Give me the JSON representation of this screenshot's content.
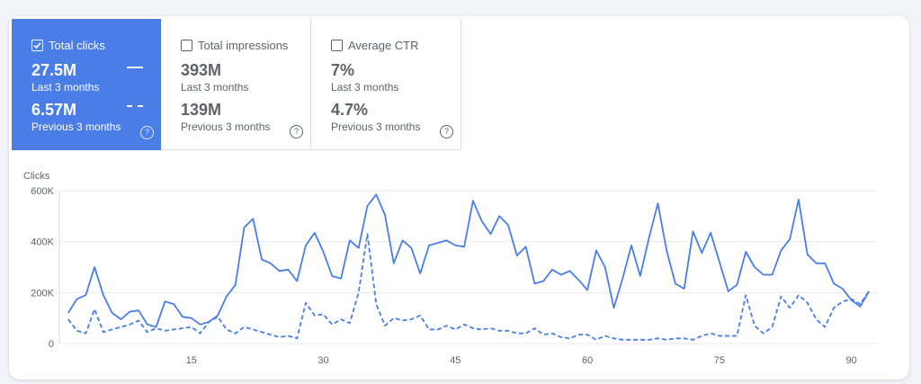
{
  "metrics": [
    {
      "label": "Total clicks",
      "checked": true,
      "value": "27.5M",
      "period": "Last 3 months",
      "prev_value": "6.57M",
      "prev_period": "Previous 3 months",
      "help": "?"
    },
    {
      "label": "Total impressions",
      "checked": false,
      "value": "393M",
      "period": "Last 3 months",
      "prev_value": "139M",
      "prev_period": "Previous 3 months",
      "help": "?"
    },
    {
      "label": "Average CTR",
      "checked": false,
      "value": "7%",
      "period": "Last 3 months",
      "prev_value": "4.7%",
      "prev_period": "Previous 3 months",
      "help": "?"
    }
  ],
  "colors": {
    "accent": "#4a7ee6",
    "line": "#4a7ee6",
    "grid": "#e8eaed",
    "axis": "#5f6368"
  },
  "chart_data": {
    "type": "line",
    "ylabel": "Clicks",
    "xlabel": "",
    "y_tick_labels": [
      "0",
      "200K",
      "400K",
      "600K"
    ],
    "y_ticks": [
      0,
      200000,
      400000,
      600000
    ],
    "x_tick_labels": [
      "15",
      "30",
      "45",
      "60",
      "75",
      "90"
    ],
    "x_ticks": [
      15,
      30,
      45,
      60,
      75,
      90
    ],
    "xlim": [
      0,
      93
    ],
    "ylim": [
      0,
      600000
    ],
    "x": [
      1,
      2,
      3,
      4,
      5,
      6,
      7,
      8,
      9,
      10,
      11,
      12,
      13,
      14,
      15,
      16,
      17,
      18,
      19,
      20,
      21,
      22,
      23,
      24,
      25,
      26,
      27,
      28,
      29,
      30,
      31,
      32,
      33,
      34,
      35,
      36,
      37,
      38,
      39,
      40,
      41,
      42,
      43,
      44,
      45,
      46,
      47,
      48,
      49,
      50,
      51,
      52,
      53,
      54,
      55,
      56,
      57,
      58,
      59,
      60,
      61,
      62,
      63,
      64,
      65,
      66,
      67,
      68,
      69,
      70,
      71,
      72,
      73,
      74,
      75,
      76,
      77,
      78,
      79,
      80,
      81,
      82,
      83,
      84,
      85,
      86,
      87,
      88,
      89,
      90,
      91,
      92
    ],
    "series": [
      {
        "style": "solid",
        "values": [
          120000,
          175000,
          190000,
          300000,
          190000,
          120000,
          95000,
          125000,
          130000,
          75000,
          65000,
          165000,
          155000,
          105000,
          100000,
          75000,
          85000,
          110000,
          185000,
          230000,
          455000,
          490000,
          330000,
          315000,
          285000,
          290000,
          245000,
          385000,
          435000,
          360000,
          265000,
          255000,
          405000,
          375000,
          540000,
          585000,
          505000,
          315000,
          405000,
          375000,
          275000,
          385000,
          395000,
          405000,
          385000,
          380000,
          560000,
          480000,
          430000,
          500000,
          465000,
          345000,
          380000,
          235000,
          245000,
          290000,
          270000,
          285000,
          250000,
          210000,
          365000,
          300000,
          140000,
          255000,
          385000,
          265000,
          415000,
          550000,
          365000,
          235000,
          215000,
          440000,
          355000,
          435000,
          320000,
          205000,
          230000,
          360000,
          300000,
          270000,
          270000,
          365000,
          410000,
          565000,
          350000,
          315000,
          315000,
          235000,
          215000,
          170000,
          145000,
          205000
        ]
      },
      {
        "style": "dashed",
        "values": [
          95000,
          50000,
          40000,
          135000,
          45000,
          55000,
          65000,
          75000,
          90000,
          45000,
          60000,
          50000,
          55000,
          60000,
          65000,
          40000,
          85000,
          105000,
          55000,
          40000,
          65000,
          55000,
          45000,
          35000,
          25000,
          30000,
          20000,
          160000,
          110000,
          115000,
          75000,
          95000,
          80000,
          200000,
          430000,
          155000,
          70000,
          100000,
          90000,
          95000,
          110000,
          55000,
          55000,
          70000,
          55000,
          75000,
          60000,
          55000,
          60000,
          50000,
          50000,
          40000,
          40000,
          60000,
          35000,
          40000,
          25000,
          20000,
          35000,
          35000,
          15000,
          30000,
          20000,
          15000,
          15000,
          15000,
          15000,
          20000,
          15000,
          20000,
          20000,
          15000,
          30000,
          40000,
          30000,
          30000,
          30000,
          190000,
          70000,
          40000,
          65000,
          185000,
          140000,
          190000,
          160000,
          95000,
          65000,
          140000,
          165000,
          175000,
          155000,
          205000
        ]
      }
    ]
  }
}
